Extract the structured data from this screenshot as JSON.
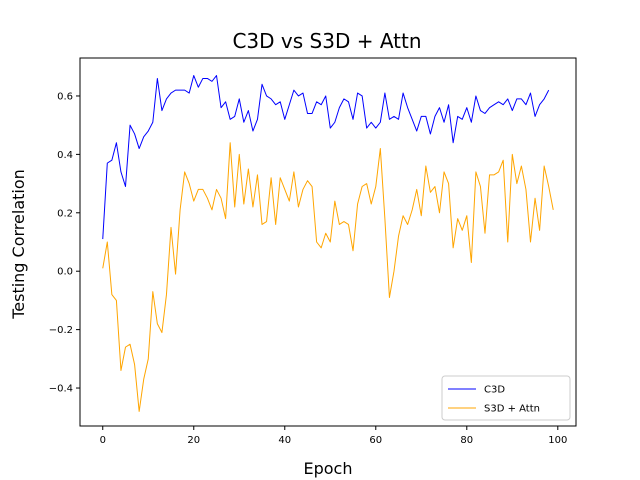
{
  "chart_data": {
    "type": "line",
    "title": "C3D vs S3D + Attn",
    "xlabel": "Epoch",
    "ylabel": "Testing Correlation",
    "xlim": [
      -5,
      104
    ],
    "ylim": [
      -0.53,
      0.73
    ],
    "xticks": [
      0,
      20,
      40,
      60,
      80,
      100
    ],
    "yticks": [
      -0.4,
      -0.2,
      0.0,
      0.2,
      0.4,
      0.6
    ],
    "ytick_labels": [
      "−0.4",
      "−0.2",
      "0.0",
      "0.2",
      "0.4",
      "0.6"
    ],
    "grid": false,
    "legend_position": "lower-right",
    "x_start": 0,
    "series": [
      {
        "name": "C3D",
        "color": "#0000ff",
        "values": [
          0.11,
          0.37,
          0.38,
          0.44,
          0.34,
          0.29,
          0.5,
          0.47,
          0.42,
          0.46,
          0.48,
          0.51,
          0.66,
          0.55,
          0.59,
          0.61,
          0.62,
          0.62,
          0.62,
          0.61,
          0.67,
          0.63,
          0.66,
          0.66,
          0.65,
          0.67,
          0.56,
          0.58,
          0.52,
          0.53,
          0.59,
          0.51,
          0.55,
          0.48,
          0.52,
          0.64,
          0.6,
          0.59,
          0.57,
          0.58,
          0.52,
          0.57,
          0.62,
          0.6,
          0.61,
          0.54,
          0.54,
          0.58,
          0.57,
          0.6,
          0.49,
          0.51,
          0.56,
          0.59,
          0.58,
          0.52,
          0.61,
          0.6,
          0.49,
          0.51,
          0.49,
          0.51,
          0.61,
          0.52,
          0.53,
          0.52,
          0.61,
          0.56,
          0.52,
          0.48,
          0.53,
          0.53,
          0.47,
          0.53,
          0.56,
          0.51,
          0.57,
          0.44,
          0.53,
          0.52,
          0.56,
          0.51,
          0.6,
          0.55,
          0.54,
          0.56,
          0.57,
          0.58,
          0.57,
          0.59,
          0.55,
          0.59,
          0.59,
          0.57,
          0.61,
          0.53,
          0.57,
          0.59,
          0.62
        ]
      },
      {
        "name": "S3D + Attn",
        "color": "#ffa500",
        "values": [
          0.01,
          0.1,
          -0.08,
          -0.1,
          -0.34,
          -0.26,
          -0.25,
          -0.32,
          -0.48,
          -0.37,
          -0.3,
          -0.07,
          -0.18,
          -0.21,
          -0.08,
          0.15,
          -0.01,
          0.21,
          0.34,
          0.3,
          0.24,
          0.28,
          0.28,
          0.25,
          0.21,
          0.28,
          0.25,
          0.18,
          0.44,
          0.22,
          0.4,
          0.23,
          0.35,
          0.22,
          0.33,
          0.16,
          0.17,
          0.32,
          0.16,
          0.32,
          0.28,
          0.24,
          0.34,
          0.22,
          0.28,
          0.31,
          0.29,
          0.1,
          0.08,
          0.13,
          0.1,
          0.24,
          0.16,
          0.17,
          0.16,
          0.07,
          0.23,
          0.29,
          0.3,
          0.23,
          0.29,
          0.42,
          0.18,
          -0.09,
          0.0,
          0.12,
          0.19,
          0.16,
          0.21,
          0.28,
          0.19,
          0.36,
          0.27,
          0.29,
          0.2,
          0.34,
          0.3,
          0.08,
          0.18,
          0.14,
          0.19,
          0.03,
          0.34,
          0.29,
          0.13,
          0.33,
          0.33,
          0.34,
          0.38,
          0.1,
          0.4,
          0.3,
          0.36,
          0.28,
          0.1,
          0.25,
          0.14,
          0.36,
          0.29,
          0.21
        ]
      }
    ]
  }
}
